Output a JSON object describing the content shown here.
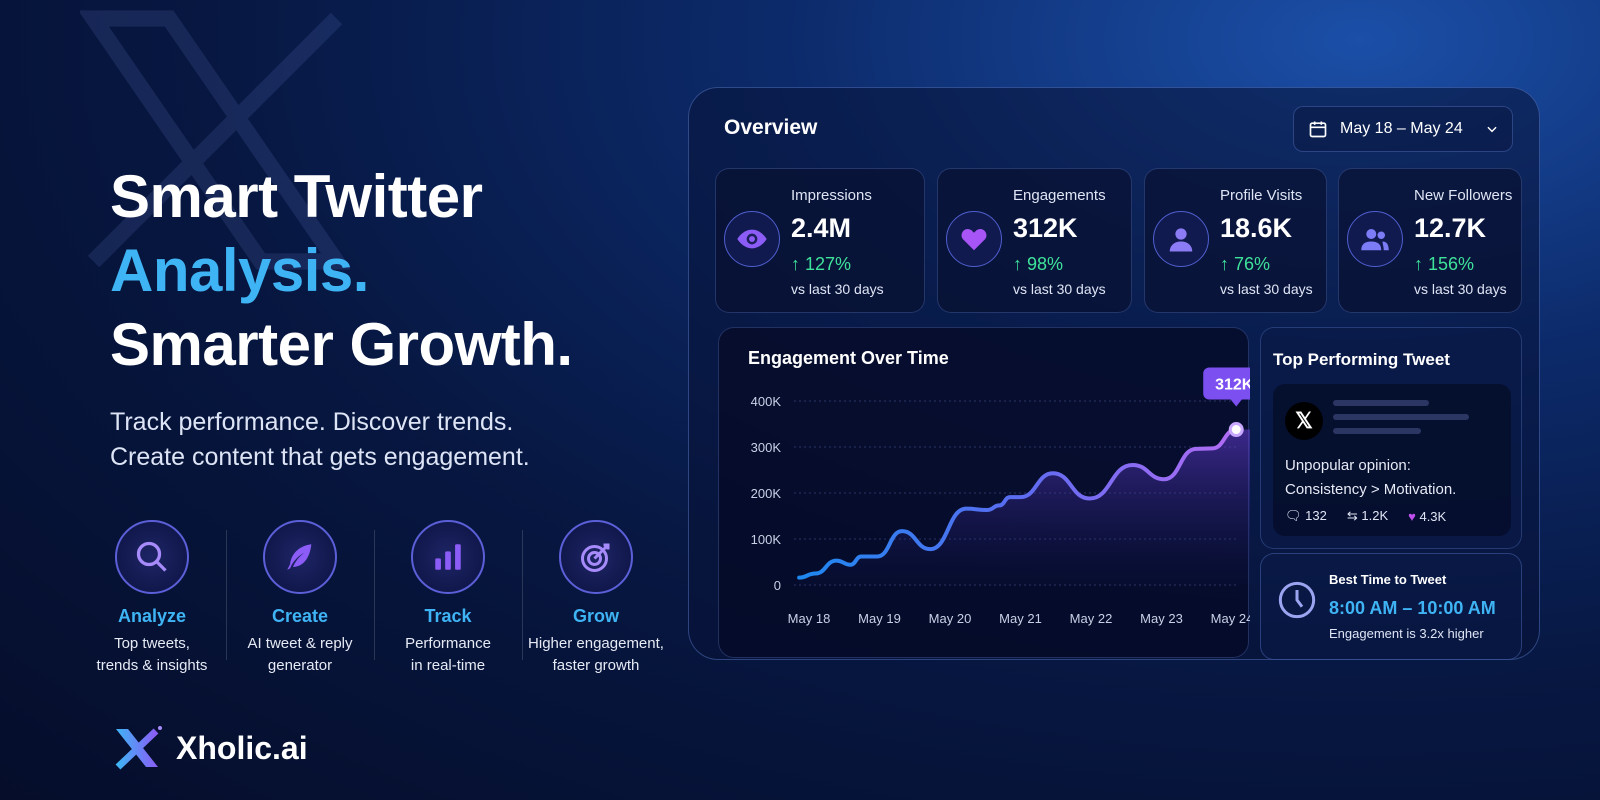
{
  "hero": {
    "line1": "Smart Twitter",
    "line2": "Analysis.",
    "line3": "Smarter Growth.",
    "sub1": "Track performance. Discover trends.",
    "sub2": "Create content that gets engagement."
  },
  "features": [
    {
      "icon": "search-icon",
      "title": "Analyze",
      "d1": "Top tweets,",
      "d2": "trends & insights"
    },
    {
      "icon": "feather-icon",
      "title": "Create",
      "d1": "AI tweet & reply",
      "d2": "generator"
    },
    {
      "icon": "bar-chart-icon",
      "title": "Track",
      "d1": "Performance",
      "d2": "in real-time"
    },
    {
      "icon": "target-icon",
      "title": "Grow",
      "d1": "Higher engagement,",
      "d2": "faster growth"
    }
  ],
  "brand": {
    "name": "Xholic.ai"
  },
  "overview": {
    "title": "Overview",
    "date_range": "May 18 – May 24"
  },
  "stats": [
    {
      "icon": "eye-icon",
      "label": "Impressions",
      "value": "2.4M",
      "change": "↑ 127%",
      "sub": "vs last 30 days"
    },
    {
      "icon": "heart-icon",
      "label": "Engagements",
      "value": "312K",
      "change": "↑ 98%",
      "sub": "vs last 30 days"
    },
    {
      "icon": "user-icon",
      "label": "Profile Visits",
      "value": "18.6K",
      "change": "↑ 76%",
      "sub": "vs last 30 days"
    },
    {
      "icon": "users-icon",
      "label": "New Followers",
      "value": "12.7K",
      "change": "↑ 156%",
      "sub": "vs last 30 days"
    }
  ],
  "top_tweet": {
    "title": "Top Performing Tweet",
    "text1": "Unpopular opinion:",
    "text2": "Consistency > Motivation.",
    "replies": "132",
    "retweets": "1.2K",
    "likes": "4.3K"
  },
  "best_time": {
    "title": "Best Time to Tweet",
    "time": "8:00 AM – 10:00 AM",
    "note": "Engagement is 3.2x higher"
  },
  "colors": {
    "accent": "#3fb4f5",
    "positive": "#3ee29b",
    "purple": "#8b5cf6"
  },
  "chart_data": {
    "type": "line",
    "title": "Engagement Over Time",
    "categories": [
      "May 18",
      "May 19",
      "May 20",
      "May 21",
      "May 22",
      "May 23",
      "May 24"
    ],
    "yticks": [
      "0",
      "100K",
      "200K",
      "300K",
      "400K"
    ],
    "ylim": [
      0,
      400000
    ],
    "x": [
      -0.14,
      0.09,
      0.39,
      0.59,
      0.74,
      0.97,
      1.32,
      1.72,
      2.23,
      2.53,
      2.7,
      2.85,
      3.0,
      3.46,
      3.98,
      4.59,
      5.04,
      5.49,
      5.72,
      6.06
    ],
    "y": [
      16000,
      25000,
      53000,
      44000,
      62000,
      62000,
      117000,
      78000,
      166000,
      163000,
      173000,
      191000,
      191000,
      243000,
      188000,
      261000,
      230000,
      296000,
      297000,
      338000
    ],
    "highlight_label": "312K"
  }
}
